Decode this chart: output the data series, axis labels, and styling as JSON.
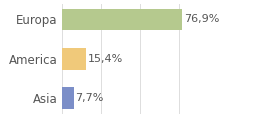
{
  "categories": [
    "Asia",
    "America",
    "Europa"
  ],
  "values": [
    7.7,
    15.4,
    76.9
  ],
  "bar_colors": [
    "#7b8ec8",
    "#f0c97a",
    "#b5c98e"
  ],
  "labels": [
    "7,7%",
    "15,4%",
    "76,9%"
  ],
  "xlim": [
    0,
    100
  ],
  "background_color": "#ffffff",
  "label_fontsize": 8,
  "tick_fontsize": 8.5,
  "bar_height": 0.55,
  "figwidth": 2.8,
  "figheight": 1.2,
  "dpi": 100
}
